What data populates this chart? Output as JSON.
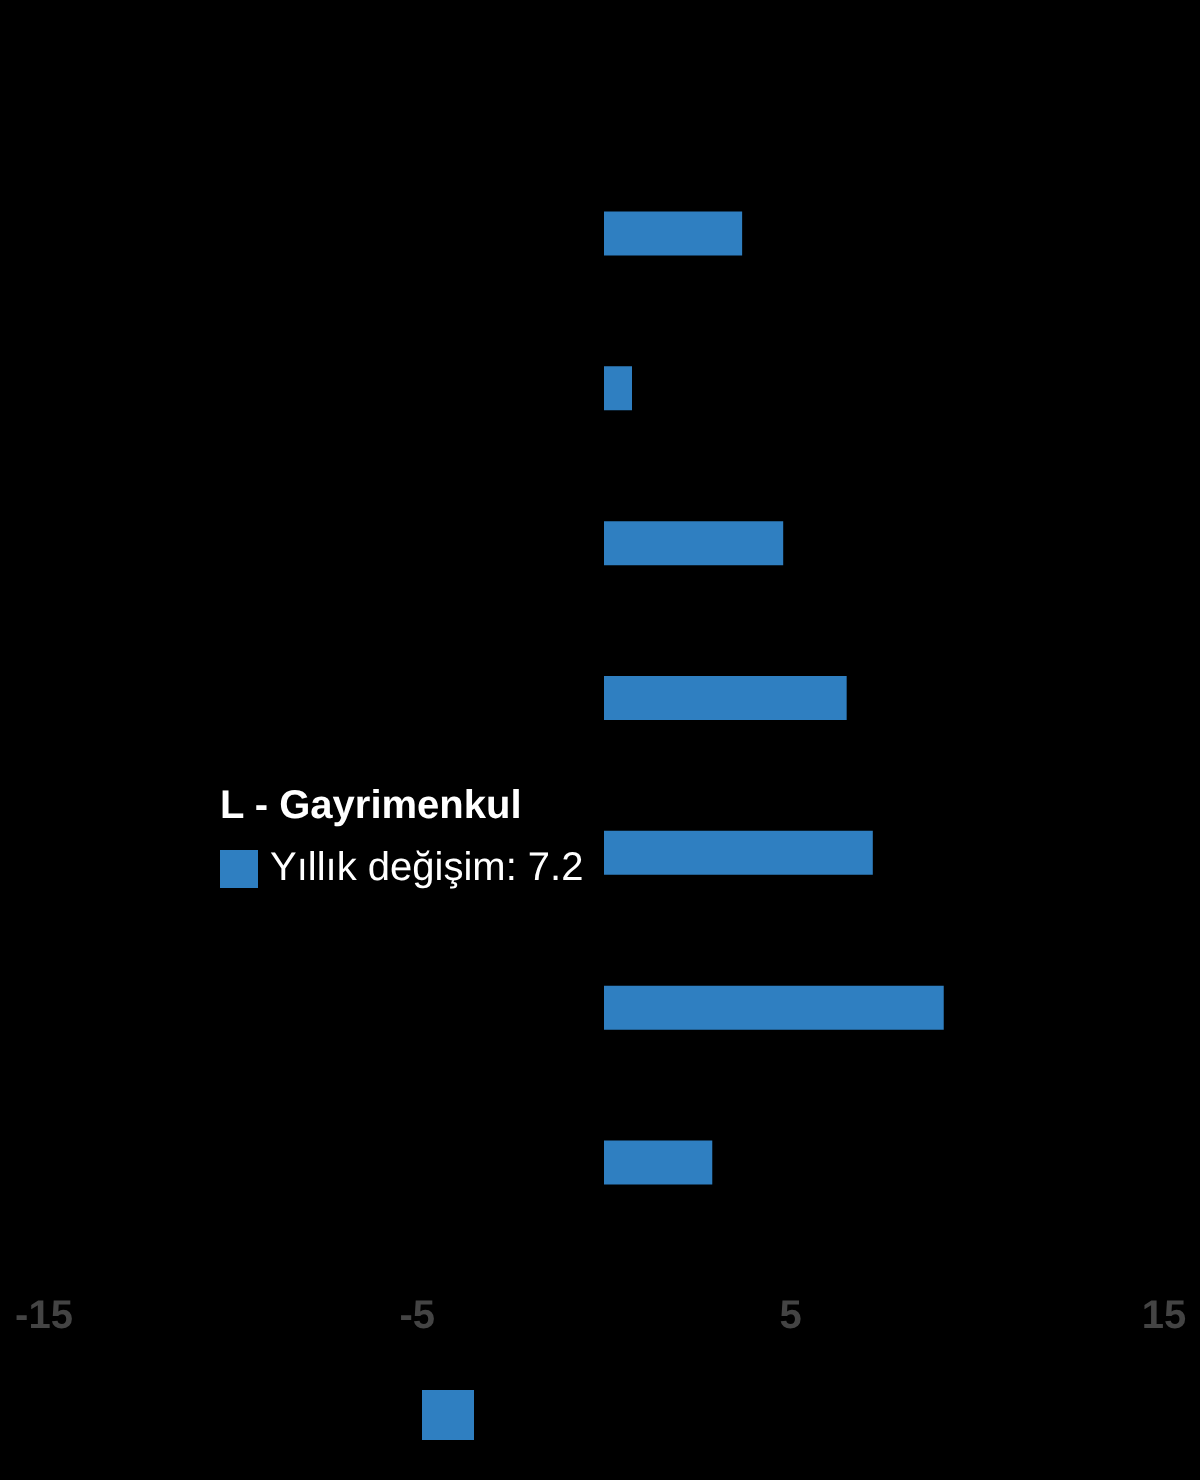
{
  "chart_data": {
    "type": "bar",
    "orientation": "horizontal",
    "categories": [
      null,
      null,
      null,
      null,
      null,
      null,
      null
    ],
    "series": [
      {
        "color": "#2f7fc1",
        "values": [
          3.7,
          0.75,
          4.8,
          6.5,
          7.2,
          9.1,
          2.9
        ]
      }
    ],
    "xlim": [
      -15,
      15
    ],
    "xticks": [
      -15,
      -5,
      5,
      15
    ],
    "grid": false,
    "annotations": [
      "L - Gayrimenkul",
      "Yıllık değişim: 7.2"
    ]
  }
}
